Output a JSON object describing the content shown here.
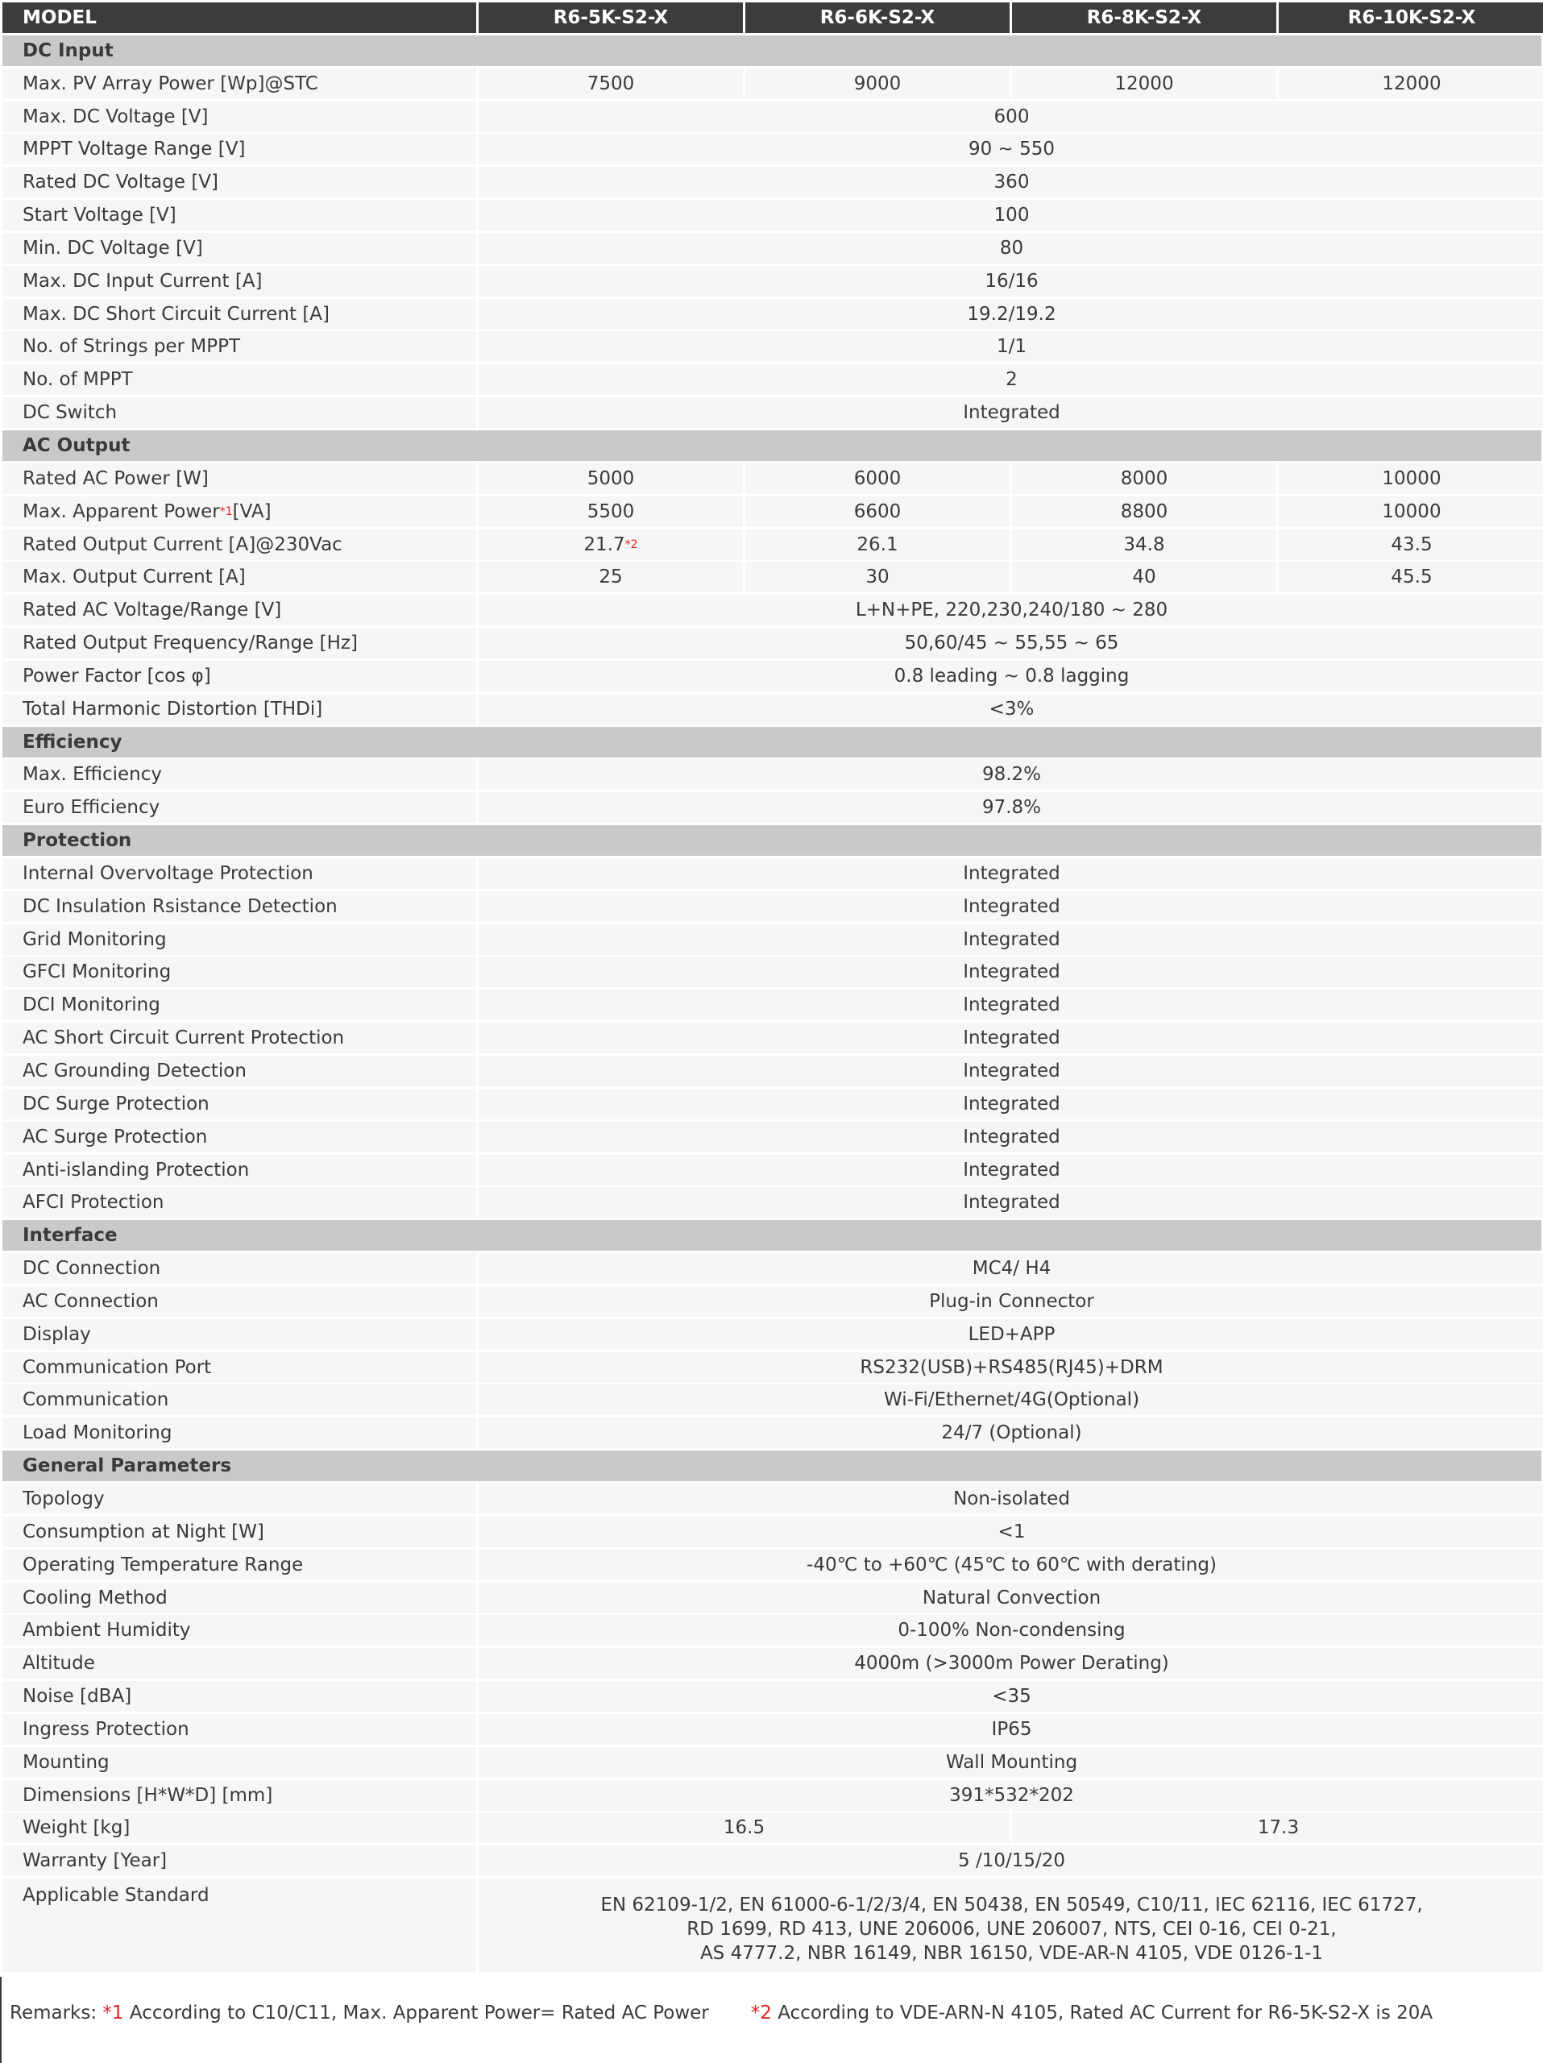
{
  "header": {
    "label": "MODEL",
    "models": [
      "R6-5K-S2-X",
      "R6-6K-S2-X",
      "R6-8K-S2-X",
      "R6-10K-S2-X"
    ]
  },
  "sections": [
    {
      "title": "DC Input",
      "rows": [
        {
          "label": "Max. PV Array Power [Wp]@STC",
          "values": [
            "7500",
            "9000",
            "12000",
            "12000"
          ]
        },
        {
          "label": "Max. DC Voltage [V]",
          "value": "600"
        },
        {
          "label": "MPPT Voltage Range [V]",
          "value": "90 ~ 550"
        },
        {
          "label": "Rated DC Voltage [V]",
          "value": "360"
        },
        {
          "label": "Start Voltage [V]",
          "value": "100"
        },
        {
          "label": "Min. DC Voltage [V]",
          "value": "80"
        },
        {
          "label": "Max. DC Input Current [A]",
          "value": "16/16"
        },
        {
          "label": "Max. DC Short Circuit Current [A]",
          "value": "19.2/19.2"
        },
        {
          "label": "No. of Strings per MPPT",
          "value": "1/1"
        },
        {
          "label": "No. of MPPT",
          "value": "2"
        },
        {
          "label": "DC Switch",
          "value": "Integrated"
        }
      ]
    },
    {
      "title": "AC Output",
      "rows": [
        {
          "label": "Rated AC Power [W]",
          "values": [
            "5000",
            "6000",
            "8000",
            "10000"
          ]
        },
        {
          "label": "Max. Apparent Power",
          "label_note": "*1",
          "label_suffix": "[VA]",
          "values": [
            "5500",
            "6600",
            "8800",
            "10000"
          ]
        },
        {
          "label": "Rated Output Current [A]@230Vac",
          "values": [
            "21.7",
            "26.1",
            "34.8",
            "43.5"
          ],
          "value_notes": [
            "*2",
            "",
            "",
            ""
          ]
        },
        {
          "label": "Max. Output Current [A]",
          "values": [
            "25",
            "30",
            "40",
            "45.5"
          ]
        },
        {
          "label": "Rated AC Voltage/Range [V]",
          "value": "L+N+PE, 220,230,240/180 ~ 280"
        },
        {
          "label": "Rated Output Frequency/Range [Hz]",
          "value": "50,60/45 ~ 55,55 ~ 65"
        },
        {
          "label": "Power Factor [cos φ]",
          "value": "0.8 leading ~ 0.8 lagging"
        },
        {
          "label": "Total Harmonic Distortion [THDi]",
          "value": "<3%"
        }
      ]
    },
    {
      "title": "Efficiency",
      "rows": [
        {
          "label": "Max. Efficiency",
          "value": "98.2%"
        },
        {
          "label": "Euro Efficiency",
          "value": "97.8%"
        }
      ]
    },
    {
      "title": "Protection",
      "rows": [
        {
          "label": "Internal Overvoltage Protection",
          "value": "Integrated"
        },
        {
          "label": "DC Insulation Rsistance Detection",
          "value": "Integrated"
        },
        {
          "label": "Grid Monitoring",
          "value": "Integrated"
        },
        {
          "label": "GFCI Monitoring",
          "value": "Integrated"
        },
        {
          "label": "DCI Monitoring",
          "value": "Integrated"
        },
        {
          "label": "AC Short Circuit Current Protection",
          "value": "Integrated"
        },
        {
          "label": "AC Grounding Detection",
          "value": "Integrated"
        },
        {
          "label": "DC Surge Protection",
          "value": "Integrated"
        },
        {
          "label": "AC Surge Protection",
          "value": "Integrated"
        },
        {
          "label": "Anti-islanding Protection",
          "value": "Integrated"
        },
        {
          "label": "AFCI Protection",
          "value": "Integrated"
        }
      ]
    },
    {
      "title": "Interface",
      "rows": [
        {
          "label": "DC Connection",
          "value": "MC4/ H4"
        },
        {
          "label": "AC Connection",
          "value": "Plug-in Connector"
        },
        {
          "label": "Display",
          "value": "LED+APP"
        },
        {
          "label": "Communication Port",
          "value": "RS232(USB)+RS485(RJ45)+DRM"
        },
        {
          "label": "Communication",
          "value": "Wi-Fi/Ethernet/4G(Optional)"
        },
        {
          "label": "Load Monitoring",
          "value": "24/7 (Optional)"
        }
      ]
    },
    {
      "title": "General Parameters",
      "rows": [
        {
          "label": "Topology",
          "value": "Non-isolated"
        },
        {
          "label": "Consumption at Night [W]",
          "value": "<1"
        },
        {
          "label": "Operating Temperature Range",
          "value": "-40℃ to +60℃ (45℃ to 60℃ with derating)"
        },
        {
          "label": "Cooling Method",
          "value": "Natural Convection"
        },
        {
          "label": "Ambient Humidity",
          "value": "0-100% Non-condensing"
        },
        {
          "label": "Altitude",
          "value": "4000m (>3000m Power Derating)"
        },
        {
          "label": "Noise [dBA]",
          "value": "<35"
        },
        {
          "label": "Ingress Protection",
          "value": "IP65"
        },
        {
          "label": "Mounting",
          "value": "Wall Mounting"
        },
        {
          "label": "Dimensions [H*W*D] [mm]",
          "value": "391*532*202"
        },
        {
          "label": "Weight [kg]",
          "split": [
            "16.5",
            "17.3"
          ]
        },
        {
          "label": "Warranty [Year]",
          "value": "5 /10/15/20"
        },
        {
          "label": "Applicable Standard",
          "lines": [
            "EN 62109-1/2, EN 61000-6-1/2/3/4, EN 50438, EN 50549, C10/11, IEC 62116, IEC 61727,",
            "RD 1699, RD 413, UNE 206006, UNE 206007, NTS, CEI 0-16, CEI 0-21,",
            "AS 4777.2, NBR 16149, NBR 16150, VDE-AR-N 4105, VDE 0126-1-1"
          ]
        }
      ]
    }
  ],
  "remarks": {
    "prefix": "Remarks: ",
    "note1_mark": "*1",
    "note1_text": " According to C10/C11, Max. Apparent Power= Rated AC Power",
    "note2_mark": "*2",
    "note2_text": " According to VDE-ARN-N 4105, Rated AC Current for R6-5K-S2-X is 20A"
  },
  "colors": {
    "header_bg": "#3d3b3b",
    "section_bg": "#c8c9c8",
    "row_bg": "#f5f6f5",
    "note_red": "#e02020"
  }
}
